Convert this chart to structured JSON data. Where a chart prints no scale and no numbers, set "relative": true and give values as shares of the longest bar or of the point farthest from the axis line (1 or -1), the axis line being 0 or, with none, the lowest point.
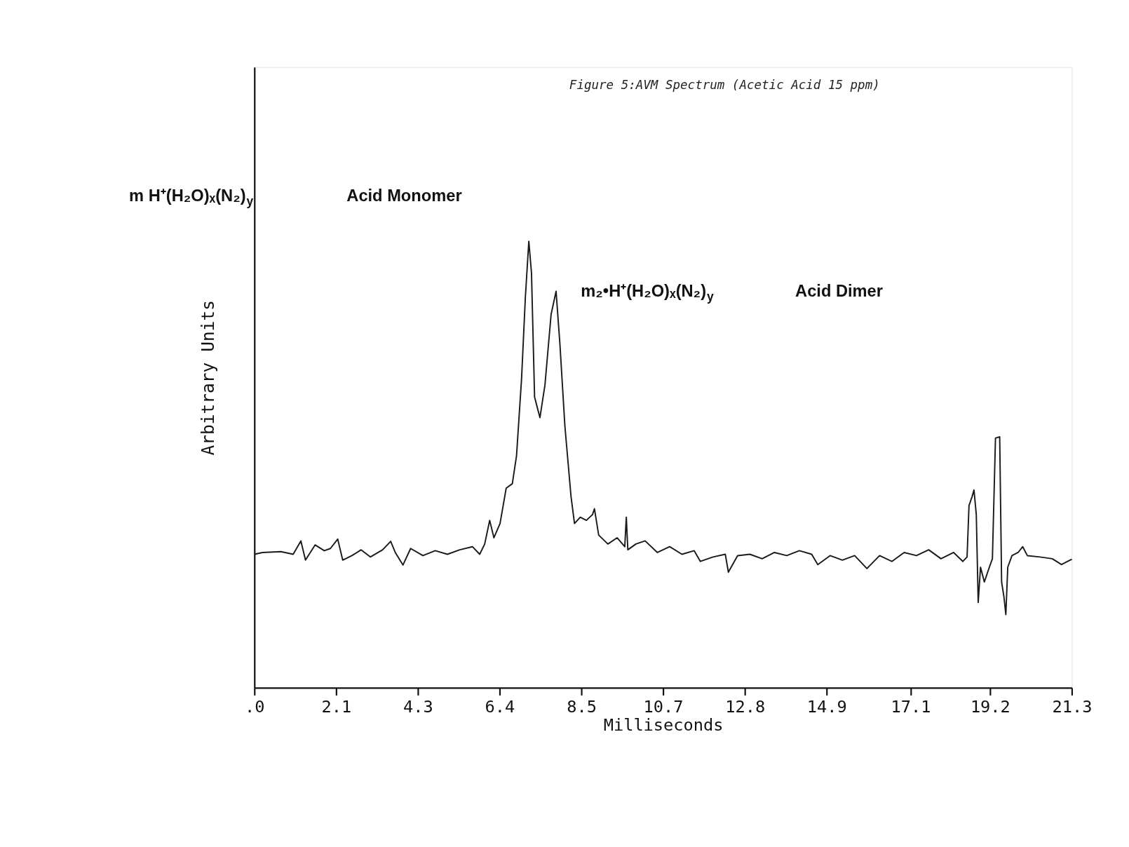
{
  "chart_data": {
    "type": "line",
    "title": "Figure 5:AVM Spectrum (Acetic Acid 15 ppm)",
    "xlabel": "Milliseconds",
    "ylabel": "Arbitrary Units",
    "relative": true,
    "grid": false,
    "marker": "none",
    "line_style": "solid",
    "annotations": [
      "m H⁺(H₂O)ₓ(N₂)$_{y}$",
      "Acid Monomer",
      "m₂•H⁺(H₂O)ₓ(N₂)$_{y}$",
      "Acid Dimer"
    ],
    "xlim": [
      0,
      21.3
    ],
    "xticks": [
      {
        "value": 0,
        "label": ".0"
      },
      {
        "value": 2.13,
        "label": "2.1"
      },
      {
        "value": 4.26,
        "label": "4.3"
      },
      {
        "value": 6.39,
        "label": "6.4"
      },
      {
        "value": 8.52,
        "label": "8.5"
      },
      {
        "value": 10.65,
        "label": "10.7"
      },
      {
        "value": 12.78,
        "label": "12.8"
      },
      {
        "value": 14.91,
        "label": "14.9"
      },
      {
        "value": 17.1,
        "label": "17.1"
      },
      {
        "value": 19.17,
        "label": "19.2"
      },
      {
        "value": 21.3,
        "label": "21.3"
      }
    ],
    "series": [
      {
        "color": "#1a1a1a",
        "x": [
          0,
          0.21,
          0.69,
          1.01,
          1.21,
          1.33,
          1.58,
          1.82,
          1.98,
          2.17,
          2.3,
          2.54,
          2.78,
          3.02,
          3.34,
          3.55,
          3.67,
          3.87,
          4.07,
          4.39,
          4.71,
          5.03,
          5.35,
          5.68,
          5.87,
          6.0,
          6.13,
          6.24,
          6.4,
          6.56,
          6.72,
          6.83,
          6.96,
          7.06,
          7.15,
          7.22,
          7.3,
          7.44,
          7.57,
          7.73,
          7.86,
          7.96,
          8.09,
          8.25,
          8.34,
          8.49,
          8.65,
          8.81,
          8.86,
          8.97,
          9.21,
          9.45,
          9.65,
          9.69,
          9.73,
          9.94,
          10.18,
          10.5,
          10.82,
          11.14,
          11.46,
          11.62,
          11.95,
          12.27,
          12.35,
          12.59,
          12.91,
          13.23,
          13.55,
          13.87,
          14.2,
          14.52,
          14.68,
          15.0,
          15.32,
          15.64,
          15.96,
          16.29,
          16.61,
          16.93,
          17.25,
          17.57,
          17.89,
          18.22,
          18.46,
          18.57,
          18.62,
          18.7,
          18.75,
          18.81,
          18.86,
          18.92,
          19.02,
          19.15,
          19.23,
          19.31,
          19.42,
          19.47,
          19.53,
          19.58,
          19.63,
          19.74,
          19.9,
          20.02,
          20.14,
          20.47,
          20.79,
          21.03,
          21.19,
          21.3
        ],
        "values": [
          0.299,
          0.303,
          0.305,
          0.299,
          0.329,
          0.286,
          0.32,
          0.307,
          0.312,
          0.333,
          0.286,
          0.296,
          0.309,
          0.293,
          0.309,
          0.328,
          0.303,
          0.275,
          0.312,
          0.296,
          0.307,
          0.299,
          0.309,
          0.316,
          0.299,
          0.322,
          0.375,
          0.336,
          0.368,
          0.447,
          0.457,
          0.52,
          0.691,
          0.875,
          1,
          0.928,
          0.651,
          0.605,
          0.678,
          0.836,
          0.888,
          0.77,
          0.586,
          0.428,
          0.368,
          0.382,
          0.375,
          0.388,
          0.401,
          0.342,
          0.322,
          0.336,
          0.316,
          0.382,
          0.309,
          0.322,
          0.329,
          0.303,
          0.316,
          0.299,
          0.307,
          0.283,
          0.293,
          0.299,
          0.259,
          0.296,
          0.299,
          0.289,
          0.303,
          0.296,
          0.307,
          0.299,
          0.276,
          0.296,
          0.286,
          0.296,
          0.267,
          0.296,
          0.283,
          0.303,
          0.296,
          0.309,
          0.289,
          0.303,
          0.283,
          0.293,
          0.408,
          0.428,
          0.443,
          0.388,
          0.191,
          0.27,
          0.237,
          0.27,
          0.289,
          0.559,
          0.562,
          0.237,
          0.204,
          0.164,
          0.27,
          0.296,
          0.303,
          0.316,
          0.296,
          0.293,
          0.289,
          0.276,
          0.283,
          0.288
        ]
      }
    ]
  }
}
